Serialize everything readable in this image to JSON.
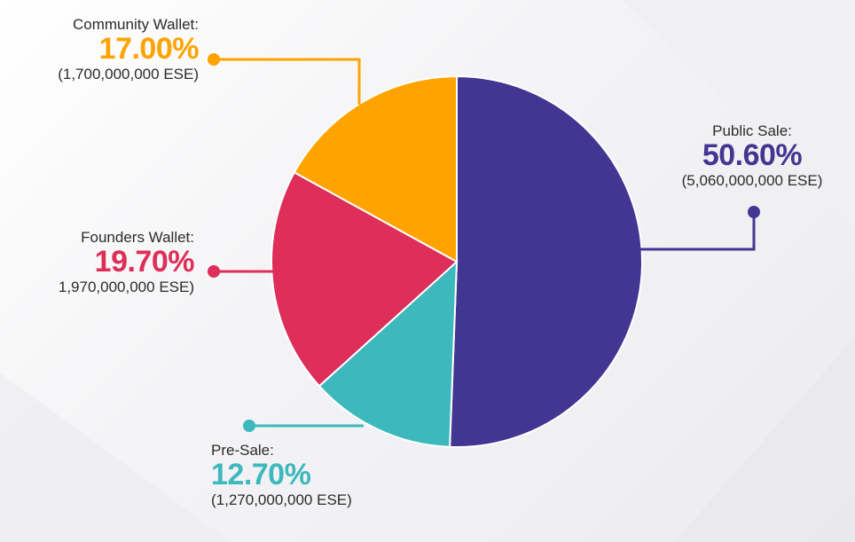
{
  "chart_data": {
    "type": "pie",
    "series": [
      {
        "name": "Public Sale:",
        "percent": 50.6,
        "value_label": "50.60%",
        "amount": "(5,060,000,000 ESE)",
        "color": "#433693"
      },
      {
        "name": "Pre-Sale:",
        "percent": 12.7,
        "value_label": "12.70%",
        "amount": "(1,270,000,000 ESE)",
        "color": "#3db8bd"
      },
      {
        "name": "Founders Wallet:",
        "percent": 19.7,
        "value_label": "19.70%",
        "amount": "1,970,000,000 ESE)",
        "color": "#de2e5a"
      },
      {
        "name": "Community Wallet:",
        "percent": 17.0,
        "value_label": "17.00%",
        "amount": "(1,700,000,000 ESE)",
        "color": "#ffa300"
      }
    ],
    "start_angle_deg": 0,
    "direction": "clockwise"
  }
}
